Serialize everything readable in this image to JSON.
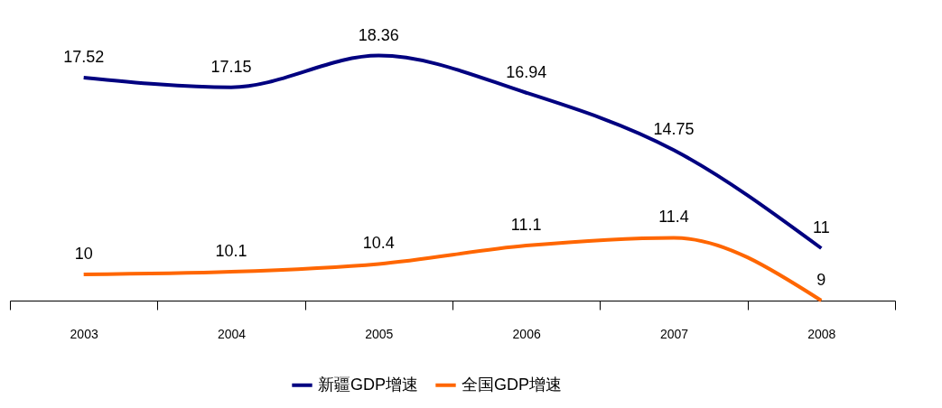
{
  "chart_data": {
    "type": "line",
    "categories": [
      "2003",
      "2004",
      "2005",
      "2006",
      "2007",
      "2008"
    ],
    "series": [
      {
        "name": "新疆GDP增速",
        "color": "#000080",
        "values": [
          17.52,
          17.15,
          18.36,
          16.94,
          14.75,
          11
        ]
      },
      {
        "name": "全国GDP增速",
        "color": "#ff6600",
        "values": [
          10,
          10.1,
          10.4,
          11.1,
          11.4,
          9
        ]
      }
    ],
    "data_labels": true,
    "legend": "bottom",
    "grid": false,
    "marker": "none",
    "line_style": "solid"
  }
}
